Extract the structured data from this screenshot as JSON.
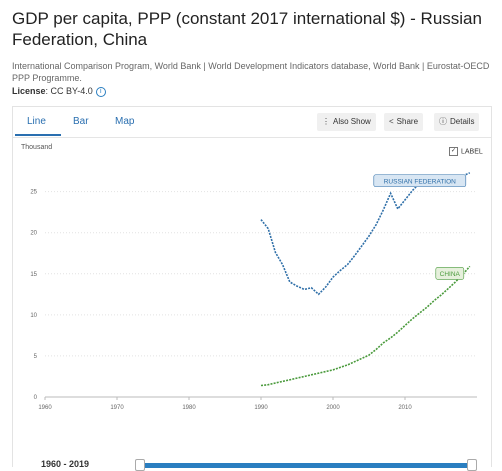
{
  "header": {
    "title": "GDP per capita, PPP (constant 2017 international $) - Russian Federation, China",
    "source": "International Comparison Program, World Bank | World Development Indicators database, World Bank | Eurostat-OECD PPP Programme.",
    "license_label": "License",
    "license_value": ": CC BY-4.0",
    "info_icon": "info-icon"
  },
  "tabs": [
    {
      "label": "Line",
      "active": true
    },
    {
      "label": "Bar",
      "active": false
    },
    {
      "label": "Map",
      "active": false
    }
  ],
  "toolbar": {
    "also_show": "Also Show",
    "share": "Share",
    "details": "Details"
  },
  "label_toggle": {
    "label": "LABEL",
    "checked": true
  },
  "range": {
    "label": "1960 - 2019",
    "start": 1960,
    "end": 2019
  },
  "chart_data": {
    "type": "line",
    "ylabel": "Thousand",
    "xlim": [
      1960,
      2020
    ],
    "ylim": [
      0,
      28
    ],
    "x_ticks": [
      1960,
      1970,
      1980,
      1990,
      2000,
      2010
    ],
    "y_ticks": [
      0,
      5,
      10,
      15,
      20,
      25
    ],
    "grid": true,
    "series": [
      {
        "name": "RUSSIAN FEDERATION",
        "color": "#2f6fa8",
        "label_fill": "#d8e6f3",
        "x": [
          1990,
          1991,
          1992,
          1993,
          1994,
          1995,
          1996,
          1997,
          1998,
          1999,
          2000,
          2001,
          2002,
          2003,
          2004,
          2005,
          2006,
          2007,
          2008,
          2009,
          2010,
          2011,
          2012,
          2013,
          2014,
          2015,
          2016,
          2017,
          2018,
          2019
        ],
        "y": [
          21.6,
          20.5,
          17.6,
          16.1,
          14.0,
          13.5,
          13.1,
          13.3,
          12.5,
          13.4,
          14.6,
          15.4,
          16.1,
          17.2,
          18.4,
          19.6,
          21.0,
          22.8,
          24.8,
          22.9,
          24.0,
          25.1,
          26.0,
          26.3,
          26.4,
          25.8,
          25.9,
          26.3,
          26.9,
          27.3
        ]
      },
      {
        "name": "CHINA",
        "color": "#4a9a3c",
        "label_fill": "#e6f0dc",
        "x": [
          1990,
          1991,
          1992,
          1993,
          1994,
          1995,
          1996,
          1997,
          1998,
          1999,
          2000,
          2001,
          2002,
          2003,
          2004,
          2005,
          2006,
          2007,
          2008,
          2009,
          2010,
          2011,
          2012,
          2013,
          2014,
          2015,
          2016,
          2017,
          2018,
          2019
        ],
        "y": [
          1.4,
          1.5,
          1.7,
          1.9,
          2.1,
          2.3,
          2.5,
          2.7,
          2.9,
          3.1,
          3.3,
          3.6,
          3.9,
          4.3,
          4.7,
          5.1,
          5.8,
          6.6,
          7.2,
          7.9,
          8.7,
          9.5,
          10.2,
          10.9,
          11.7,
          12.4,
          13.2,
          14.0,
          14.9,
          15.9
        ]
      }
    ]
  }
}
